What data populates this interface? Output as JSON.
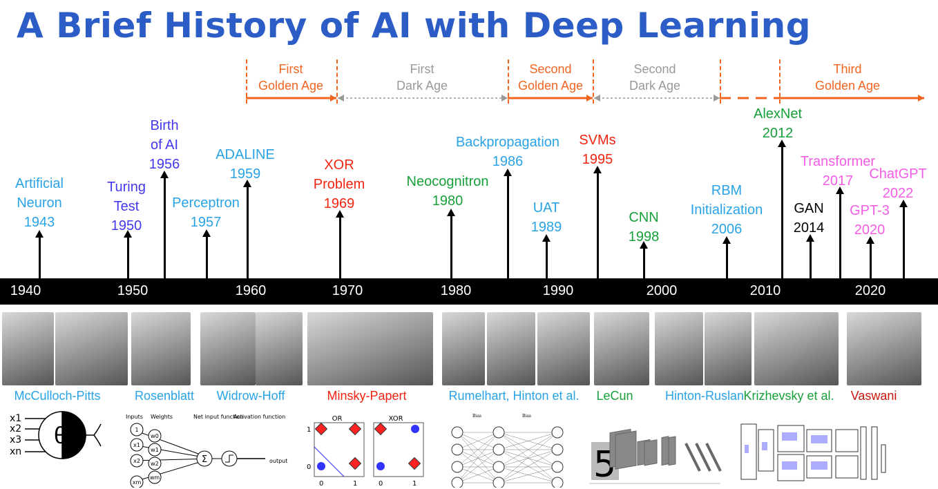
{
  "title": "A Brief History of AI with Deep Learning",
  "colors": {
    "title": "#2c5cc5",
    "orange": "#f06420",
    "gray": "#999999",
    "lightblue": "#29a3e6",
    "blue": "#4338ee",
    "red": "#f2230f",
    "green": "#17a039",
    "pink": "#f45ce6",
    "black": "#000000",
    "darkred": "#c8180c"
  },
  "eras": [
    {
      "lines": [
        "First",
        "Golden Age"
      ],
      "color": "orange"
    },
    {
      "lines": [
        "First",
        "Dark Age"
      ],
      "color": "gray"
    },
    {
      "lines": [
        "Second",
        "Golden Age"
      ],
      "color": "orange"
    },
    {
      "lines": [
        "Second",
        "Dark Age"
      ],
      "color": "gray"
    },
    {
      "lines": [
        "Third",
        "Golden Age"
      ],
      "color": "orange"
    }
  ],
  "years": [
    "1940",
    "1950",
    "1960",
    "1970",
    "1980",
    "1990",
    "2000",
    "2010",
    "2020"
  ],
  "events": [
    {
      "lines": [
        "Artificial",
        "Neuron",
        "1943"
      ],
      "color": "lightblue"
    },
    {
      "lines": [
        "Turing",
        "Test",
        "1950"
      ],
      "color": "blue"
    },
    {
      "lines": [
        "Birth",
        "of AI",
        "1956"
      ],
      "color": "blue"
    },
    {
      "lines": [
        "Perceptron",
        "1957"
      ],
      "color": "lightblue"
    },
    {
      "lines": [
        "ADALINE",
        "1959"
      ],
      "color": "lightblue"
    },
    {
      "lines": [
        "XOR",
        "Problem",
        "1969"
      ],
      "color": "red"
    },
    {
      "lines": [
        "Neocognitron",
        "1980"
      ],
      "color": "green"
    },
    {
      "lines": [
        "Backpropagation",
        "1986"
      ],
      "color": "lightblue"
    },
    {
      "lines": [
        "UAT",
        "1989"
      ],
      "color": "lightblue"
    },
    {
      "lines": [
        "SVMs",
        "1995"
      ],
      "color": "red"
    },
    {
      "lines": [
        "CNN",
        "1998"
      ],
      "color": "green"
    },
    {
      "lines": [
        "RBM",
        "Initialization",
        "2006"
      ],
      "color": "lightblue"
    },
    {
      "lines": [
        "AlexNet",
        "2012"
      ],
      "color": "green"
    },
    {
      "lines": [
        "GAN",
        "2014"
      ],
      "color": "black"
    },
    {
      "lines": [
        "Transformer",
        "2017"
      ],
      "color": "pink"
    },
    {
      "lines": [
        "GPT-3",
        "2020"
      ],
      "color": "pink"
    },
    {
      "lines": [
        "ChatGPT",
        "2022"
      ],
      "color": "pink"
    }
  ],
  "people": [
    {
      "name": "McCulloch-Pitts",
      "color": "lightblue"
    },
    {
      "name": "Rosenblatt",
      "color": "lightblue"
    },
    {
      "name": "Widrow-Hoff",
      "color": "lightblue"
    },
    {
      "name": "Minsky-Papert",
      "color": "red"
    },
    {
      "name": "Rumelhart, Hinton et al.",
      "color": "lightblue"
    },
    {
      "name": "LeCun",
      "color": "green"
    },
    {
      "name": "Hinton-Ruslan",
      "color": "lightblue"
    },
    {
      "name": "Krizhevsky et al.",
      "color": "green"
    },
    {
      "name": "Vaswani",
      "color": "darkred"
    }
  ],
  "diagrams": {
    "neuron": {
      "inputs": [
        "x1",
        "x2",
        "x3",
        "xn"
      ],
      "symbol": "θ"
    },
    "perceptron": {
      "headers": [
        "Inputs",
        "Weights",
        "Net input function",
        "Activation function"
      ],
      "output": "output",
      "inputs": [
        "1",
        "x1",
        "x2",
        "xm"
      ],
      "weights": [
        "w0",
        "w1",
        "w2",
        "wm"
      ],
      "sum": "Σ"
    },
    "xor": {
      "panels": [
        "OR",
        "XOR"
      ],
      "ticks": [
        "0",
        "1"
      ]
    },
    "backprop": {
      "bias": "Bias"
    },
    "lenet": {
      "digit": "5"
    }
  }
}
